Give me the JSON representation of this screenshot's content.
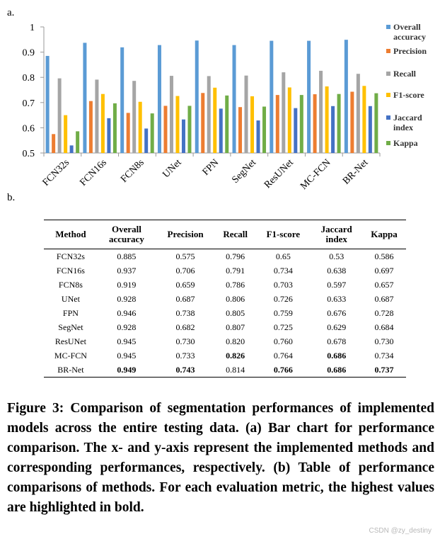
{
  "panel_a_label": "a.",
  "panel_b_label": "b.",
  "chart_data": {
    "type": "bar",
    "title": "",
    "xlabel": "",
    "ylabel": "",
    "ylim": [
      0.5,
      1
    ],
    "yticks": [
      "0.5",
      "0.6",
      "0.7",
      "0.8",
      "0.9",
      "1"
    ],
    "categories": [
      "FCN32s",
      "FCN16s",
      "FCN8s",
      "UNet",
      "FPN",
      "SegNet",
      "ResUNet",
      "MC-FCN",
      "BR-Net"
    ],
    "series": [
      {
        "name": "Overall accuracy",
        "legend_lines": [
          "Overall",
          "accuracy"
        ],
        "color": "#5B9BD5",
        "values": [
          0.885,
          0.937,
          0.919,
          0.928,
          0.946,
          0.928,
          0.945,
          0.945,
          0.949
        ]
      },
      {
        "name": "Precision",
        "legend_lines": [
          "Precision"
        ],
        "color": "#ED7D31",
        "values": [
          0.575,
          0.706,
          0.659,
          0.687,
          0.738,
          0.682,
          0.73,
          0.733,
          0.743
        ]
      },
      {
        "name": "Recall",
        "legend_lines": [
          "Recall"
        ],
        "color": "#A5A5A5",
        "values": [
          0.796,
          0.791,
          0.786,
          0.806,
          0.805,
          0.807,
          0.82,
          0.826,
          0.814
        ]
      },
      {
        "name": "F1-score",
        "legend_lines": [
          "F1-score"
        ],
        "color": "#FFC000",
        "values": [
          0.65,
          0.734,
          0.703,
          0.726,
          0.759,
          0.725,
          0.76,
          0.764,
          0.766
        ]
      },
      {
        "name": "Jaccard index",
        "legend_lines": [
          "Jaccard",
          "index"
        ],
        "color": "#4472C4",
        "values": [
          0.53,
          0.638,
          0.597,
          0.633,
          0.676,
          0.629,
          0.678,
          0.686,
          0.686
        ]
      },
      {
        "name": "Kappa",
        "legend_lines": [
          "Kappa"
        ],
        "color": "#70AD47",
        "values": [
          0.586,
          0.697,
          0.657,
          0.687,
          0.728,
          0.684,
          0.73,
          0.734,
          0.737
        ]
      }
    ],
    "legend": "right"
  },
  "table": {
    "headers": [
      {
        "lines": [
          "Method"
        ]
      },
      {
        "lines": [
          "Overall",
          "accuracy"
        ]
      },
      {
        "lines": [
          "Precision"
        ]
      },
      {
        "lines": [
          "Recall"
        ]
      },
      {
        "lines": [
          "F1-score"
        ]
      },
      {
        "lines": [
          "Jaccard",
          "index"
        ]
      },
      {
        "lines": [
          "Kappa"
        ]
      }
    ],
    "rows": [
      {
        "cells": [
          "FCN32s",
          "0.885",
          "0.575",
          "0.796",
          "0.65",
          "0.53",
          "0.586"
        ],
        "bold": []
      },
      {
        "cells": [
          "FCN16s",
          "0.937",
          "0.706",
          "0.791",
          "0.734",
          "0.638",
          "0.697"
        ],
        "bold": []
      },
      {
        "cells": [
          "FCN8s",
          "0.919",
          "0.659",
          "0.786",
          "0.703",
          "0.597",
          "0.657"
        ],
        "bold": []
      },
      {
        "cells": [
          "UNet",
          "0.928",
          "0.687",
          "0.806",
          "0.726",
          "0.633",
          "0.687"
        ],
        "bold": []
      },
      {
        "cells": [
          "FPN",
          "0.946",
          "0.738",
          "0.805",
          "0.759",
          "0.676",
          "0.728"
        ],
        "bold": []
      },
      {
        "cells": [
          "SegNet",
          "0.928",
          "0.682",
          "0.807",
          "0.725",
          "0.629",
          "0.684"
        ],
        "bold": []
      },
      {
        "cells": [
          "ResUNet",
          "0.945",
          "0.730",
          "0.820",
          "0.760",
          "0.678",
          "0.730"
        ],
        "bold": []
      },
      {
        "cells": [
          "MC-FCN",
          "0.945",
          "0.733",
          "0.826",
          "0.764",
          "0.686",
          "0.734"
        ],
        "bold": [
          3,
          5
        ]
      },
      {
        "cells": [
          "BR-Net",
          "0.949",
          "0.743",
          "0.814",
          "0.766",
          "0.686",
          "0.737"
        ],
        "bold": [
          1,
          2,
          4,
          5,
          6
        ]
      }
    ]
  },
  "caption": "Figure 3: Comparison of segmentation performances of implemented models across the entire testing data. (a) Bar chart for performance comparison. The x- and y-axis represent the implemented methods and corresponding performances, respectively. (b) Table of performance comparisons of methods. For each evaluation metric, the highest values are highlighted in bold.",
  "watermark": "CSDN @zy_destiny"
}
